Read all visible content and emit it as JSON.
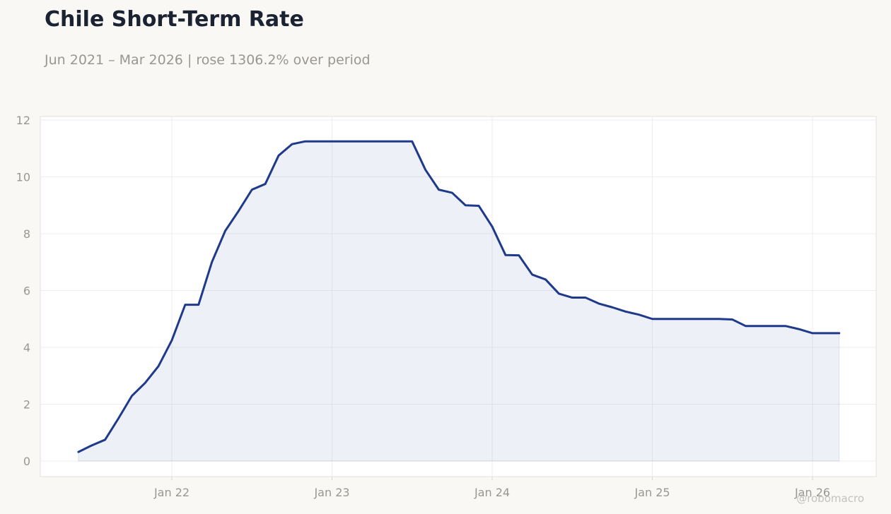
{
  "title": "Chile Short-Term Rate",
  "subtitle": "Jun 2021 – Mar 2026 | rose 1306.2% over period",
  "watermark": "@robomacro",
  "colors": {
    "line": "#1f3a8a",
    "fill": "#1f3a8a",
    "background": "#f9f8f5",
    "plot_background": "#ffffff",
    "grid": "#eeeeee",
    "tick_text": "#9a9792",
    "title_text": "#1b2333"
  },
  "chart_data": {
    "type": "area",
    "title": "Chile Short-Term Rate",
    "subtitle": "Jun 2021 – Mar 2026 | rose 1306.2% over period",
    "xlabel": "",
    "ylabel": "",
    "ylim": [
      -0.5,
      12.1
    ],
    "y_ticks": [
      0,
      2,
      4,
      6,
      8,
      10,
      12
    ],
    "x_ticks": [
      {
        "date": "2022-01",
        "label": "Jan 22"
      },
      {
        "date": "2023-01",
        "label": "Jan 23"
      },
      {
        "date": "2024-01",
        "label": "Jan 24"
      },
      {
        "date": "2025-01",
        "label": "Jan 25"
      },
      {
        "date": "2026-01",
        "label": "Jan 26"
      }
    ],
    "xlim": [
      "2021-04",
      "2026-05"
    ],
    "grid": true,
    "legend": "none",
    "series": [
      {
        "x": [
          "2021-06",
          "2021-07",
          "2021-08",
          "2021-09",
          "2021-10",
          "2021-11",
          "2021-12",
          "2022-01",
          "2022-02",
          "2022-03",
          "2022-04",
          "2022-05",
          "2022-06",
          "2022-07",
          "2022-08",
          "2022-09",
          "2022-10",
          "2022-11",
          "2022-12",
          "2023-01",
          "2023-02",
          "2023-03",
          "2023-04",
          "2023-05",
          "2023-06",
          "2023-07",
          "2023-08",
          "2023-09",
          "2023-10",
          "2023-11",
          "2023-12",
          "2024-01",
          "2024-02",
          "2024-03",
          "2024-04",
          "2024-05",
          "2024-06",
          "2024-07",
          "2024-08",
          "2024-09",
          "2024-10",
          "2024-11",
          "2024-12",
          "2025-01",
          "2025-02",
          "2025-03",
          "2025-04",
          "2025-05",
          "2025-06",
          "2025-07",
          "2025-08",
          "2025-09",
          "2025-10",
          "2025-11",
          "2025-12",
          "2026-01",
          "2026-02",
          "2026-03"
        ],
        "values": [
          0.32,
          0.55,
          0.75,
          1.5,
          2.29,
          2.75,
          3.34,
          4.25,
          5.5,
          5.5,
          7.0,
          8.1,
          8.8,
          9.55,
          9.75,
          10.75,
          11.15,
          11.25,
          11.25,
          11.25,
          11.25,
          11.25,
          11.25,
          11.25,
          11.25,
          11.25,
          10.25,
          9.55,
          9.44,
          9.0,
          8.98,
          8.25,
          7.25,
          7.24,
          6.56,
          6.39,
          5.89,
          5.75,
          5.75,
          5.54,
          5.41,
          5.26,
          5.15,
          5.0,
          5.0,
          5.0,
          5.0,
          5.0,
          5.0,
          4.98,
          4.75,
          4.75,
          4.75,
          4.75,
          4.64,
          4.5,
          4.5,
          4.5
        ]
      }
    ]
  }
}
